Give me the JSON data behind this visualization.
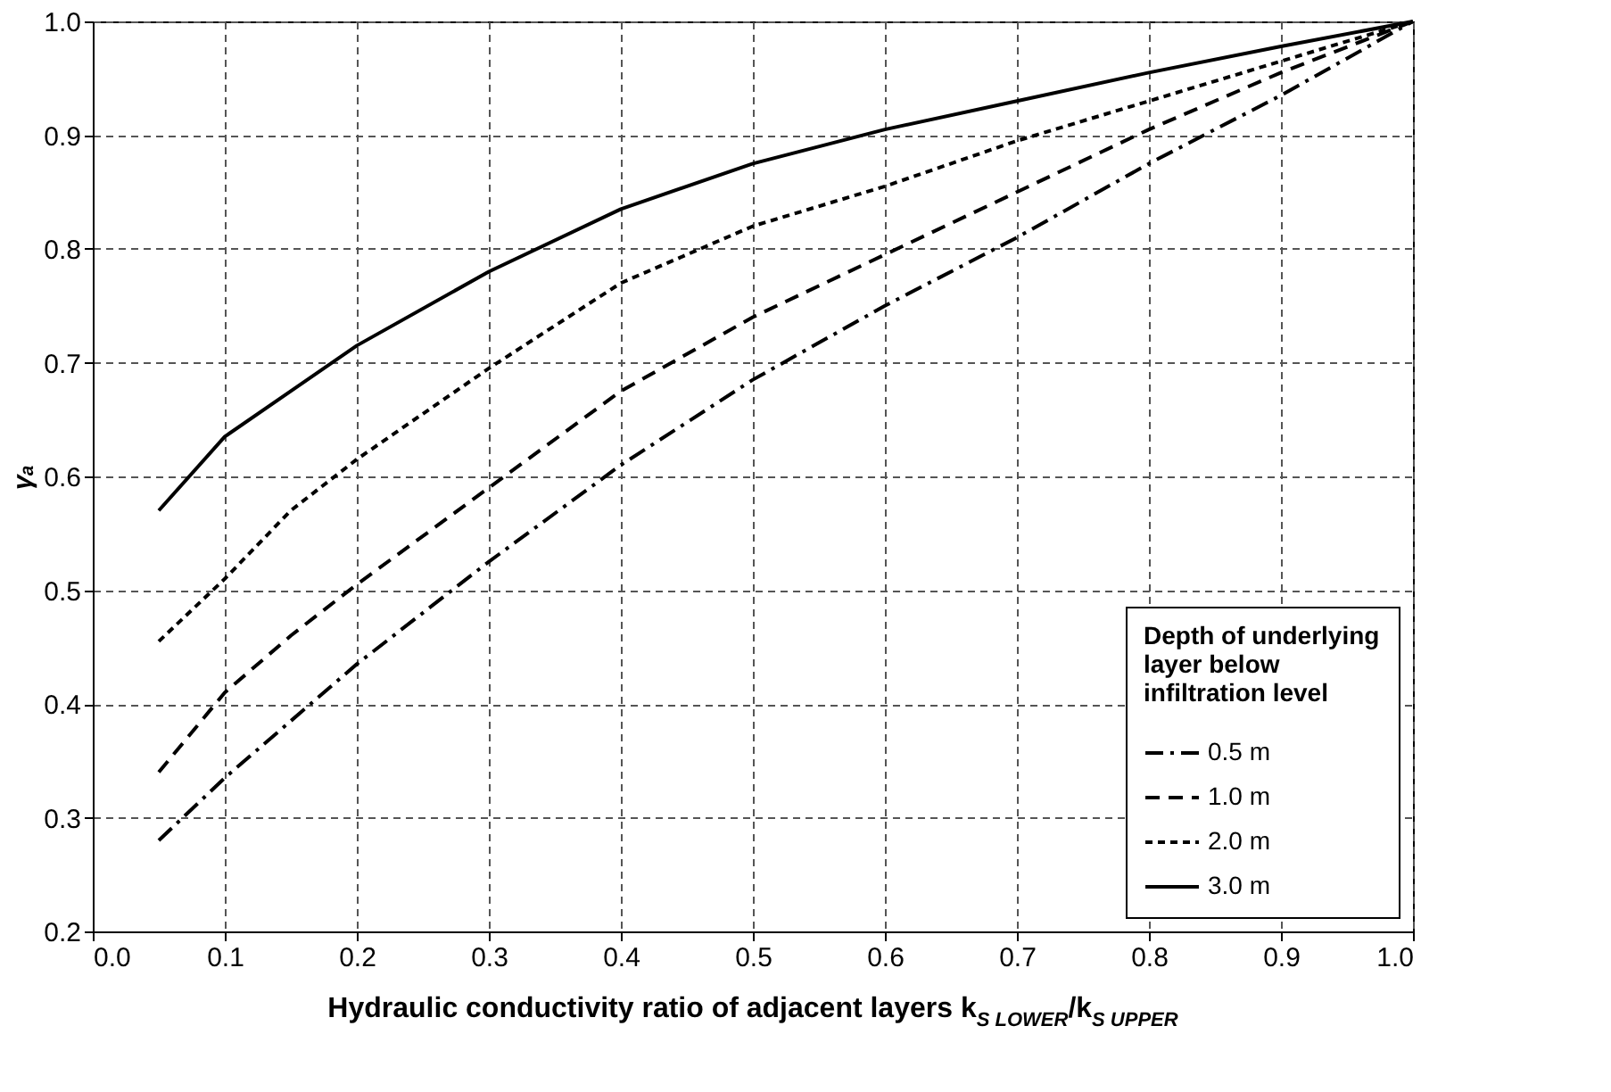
{
  "chart_data": {
    "type": "line",
    "xlabel": "Hydraulic conductivity ratio of adjacent layers k$_{S LOWER}$/k$_{S UPPER}$",
    "ylabel": "γₐ",
    "legend_title": "Depth of underlying layer below infiltration level",
    "x": [
      0.05,
      0.1,
      0.15,
      0.2,
      0.3,
      0.4,
      0.5,
      0.6,
      0.7,
      0.8,
      0.9,
      1.0
    ],
    "series": [
      {
        "name": "0.5 m",
        "color": "#000000",
        "line_style": "dashdot",
        "values": [
          0.28,
          0.335,
          0.385,
          0.435,
          0.525,
          0.61,
          0.685,
          0.75,
          0.81,
          0.875,
          0.935,
          1.0
        ]
      },
      {
        "name": "1.0 m",
        "color": "#000000",
        "line_style": "dashed",
        "values": [
          0.34,
          0.41,
          0.46,
          0.505,
          0.59,
          0.675,
          0.74,
          0.795,
          0.85,
          0.905,
          0.955,
          1.0
        ]
      },
      {
        "name": "2.0 m",
        "color": "#000000",
        "line_style": "dotted",
        "values": [
          0.455,
          0.51,
          0.57,
          0.615,
          0.695,
          0.77,
          0.82,
          0.855,
          0.895,
          0.93,
          0.965,
          1.0
        ]
      },
      {
        "name": "3.0 m",
        "color": "#000000",
        "line_style": "solid",
        "values": [
          0.57,
          0.635,
          0.675,
          0.715,
          0.78,
          0.835,
          0.875,
          0.905,
          0.93,
          0.955,
          0.978,
          1.0
        ]
      }
    ],
    "xlim": [
      0,
      1
    ],
    "xticks": [
      {
        "value": 0,
        "label": "0.0"
      },
      0.1,
      0.2,
      0.3,
      0.4,
      0.5,
      0.6,
      0.7,
      0.8,
      0.9,
      {
        "value": 1,
        "label": "1.0"
      }
    ],
    "ylim": [
      0.2,
      1
    ],
    "yticks": [
      0.2,
      0.3,
      0.4,
      0.5,
      0.6,
      0.7,
      0.8,
      0.9,
      {
        "value": 1,
        "label": "1.0"
      }
    ],
    "grid": true,
    "legend": "bottom right",
    "marker": "none"
  }
}
